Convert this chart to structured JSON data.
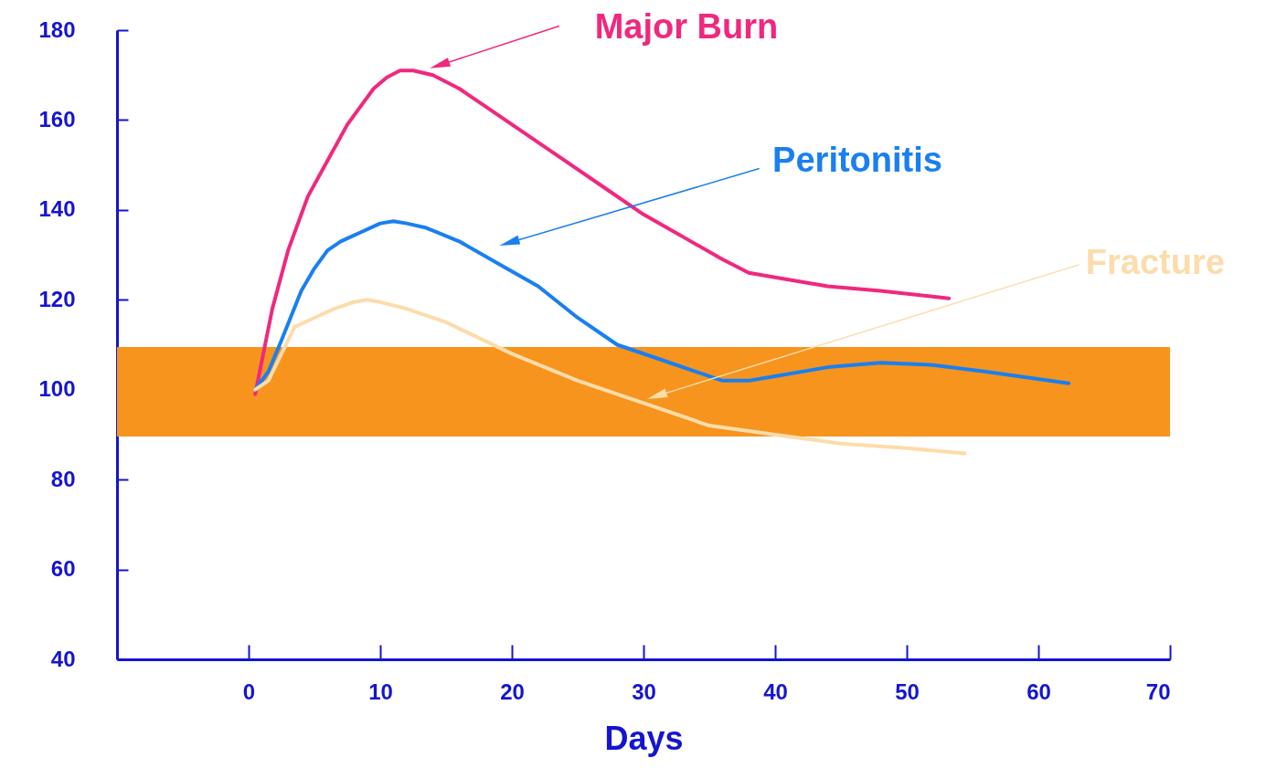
{
  "chart_data": {
    "type": "line",
    "xlabel": "Days",
    "xlim": [
      -10,
      70
    ],
    "xticks": [
      0,
      10,
      20,
      30,
      40,
      50,
      60,
      70
    ],
    "ylim": [
      40,
      180
    ],
    "yticks": [
      40,
      60,
      80,
      100,
      120,
      140,
      160,
      180
    ],
    "grid": false,
    "line_style": "solid",
    "marker": "none",
    "bands": [
      {
        "axis": "y",
        "from": 89.6,
        "to": 109.5,
        "color": "#f7941d"
      }
    ],
    "series": [
      {
        "name": "Major Burn",
        "color": "#f0287f",
        "x": [
          0.5,
          1.8,
          3,
          4.5,
          6,
          7.5,
          8.5,
          9.5,
          10.5,
          11.5,
          12.5,
          14,
          16,
          18,
          21,
          24,
          27,
          30,
          33,
          36,
          38,
          40,
          44,
          48,
          53.2
        ],
        "values": [
          99,
          118,
          131,
          143,
          151,
          159,
          163,
          167,
          169.5,
          171,
          171,
          170,
          167,
          163,
          157,
          151,
          145,
          139,
          134,
          129,
          126,
          125,
          123,
          122,
          120.3
        ]
      },
      {
        "name": "Peritonitis",
        "color": "#1a7ff0",
        "x": [
          0.5,
          1.5,
          2.5,
          4,
          5,
          6,
          7,
          8.5,
          10,
          11,
          12,
          13.5,
          16,
          19,
          22,
          25,
          28,
          31,
          34,
          36,
          38,
          40,
          44,
          48,
          52,
          56,
          62.3
        ],
        "values": [
          100,
          104,
          111,
          122,
          127,
          131,
          133,
          135,
          137,
          137.5,
          137,
          136,
          133,
          128,
          123,
          116,
          110,
          107,
          104,
          102,
          102,
          103,
          105,
          106,
          105.5,
          104,
          101.4
        ]
      },
      {
        "name": "Fracture",
        "color": "#fcdcaa",
        "x": [
          0.5,
          1.5,
          2.5,
          3.5,
          5,
          6.5,
          8,
          9,
          10,
          12,
          15,
          20,
          25,
          30,
          35,
          40,
          45,
          50,
          54.4
        ],
        "values": [
          100,
          102,
          108,
          114,
          116,
          118,
          119.5,
          120,
          119.5,
          118,
          115,
          108,
          102,
          97,
          92,
          90,
          88,
          87,
          85.8
        ]
      }
    ]
  }
}
